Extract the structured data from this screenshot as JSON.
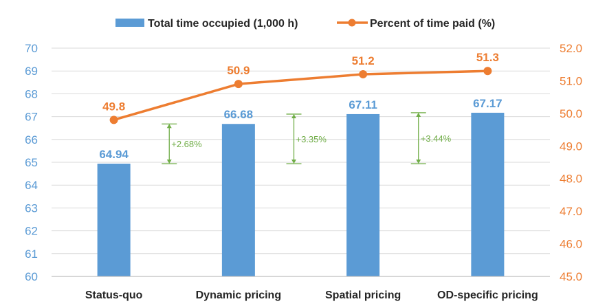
{
  "chart_data": {
    "type": "bar",
    "categories": [
      "Status-quo",
      "Dynamic pricing",
      "Spatial pricing",
      "OD-specific pricing"
    ],
    "series": [
      {
        "name": "Total time occupied (1,000 h)",
        "type": "bar",
        "axis": "left",
        "values": [
          64.94,
          66.68,
          67.11,
          67.17
        ],
        "labels": [
          "64.94",
          "66.68",
          "67.11",
          "67.17"
        ]
      },
      {
        "name": "Percent of time paid (%)",
        "type": "line",
        "axis": "right",
        "values": [
          49.8,
          50.9,
          51.2,
          51.3
        ],
        "labels": [
          "49.8",
          "50.9",
          "51.2",
          "51.3"
        ]
      }
    ],
    "y_left": {
      "min": 60,
      "max": 70,
      "ticks": [
        "60",
        "61",
        "62",
        "63",
        "64",
        "65",
        "66",
        "67",
        "68",
        "69",
        "70"
      ]
    },
    "y_right": {
      "min": 45,
      "max": 52,
      "ticks": [
        "45.0",
        "46.0",
        "47.0",
        "48.0",
        "49.0",
        "50.0",
        "51.0",
        "52.0"
      ]
    },
    "annotations": [
      {
        "between": [
          0,
          1
        ],
        "from": 64.94,
        "to": 66.68,
        "label": "+2.68%"
      },
      {
        "between": [
          1,
          2
        ],
        "from": 64.94,
        "to": 67.11,
        "label": "+3.35%"
      },
      {
        "between": [
          2,
          3
        ],
        "from": 64.94,
        "to": 67.17,
        "label": "+3.44%"
      }
    ],
    "legend_position": "top-center",
    "grid": true,
    "colors": {
      "bar": "#5B9BD5",
      "line": "#ED7D31",
      "annotation": "#70AD47",
      "grid": "#D9D9D9",
      "text": "#262626"
    }
  }
}
